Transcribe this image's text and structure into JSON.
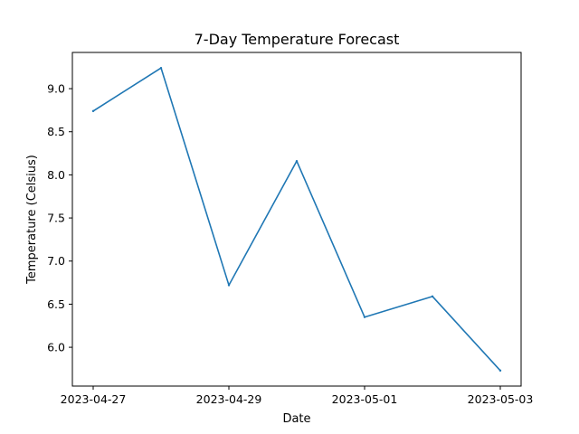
{
  "chart_data": {
    "type": "line",
    "title": "7-Day Temperature Forecast",
    "xlabel": "Date",
    "ylabel": "Temperature (Celsius)",
    "x": [
      "2023-04-27",
      "2023-04-28",
      "2023-04-29",
      "2023-04-30",
      "2023-05-01",
      "2023-05-02",
      "2023-05-03"
    ],
    "xticks": [
      "2023-04-27",
      "2023-04-29",
      "2023-05-01",
      "2023-05-03"
    ],
    "series": [
      {
        "values": [
          8.74,
          9.24,
          6.72,
          8.16,
          6.35,
          6.59,
          5.73
        ],
        "color": "#1f77b4"
      }
    ],
    "yticks": [
      "6.0",
      "6.5",
      "7.0",
      "7.5",
      "8.0",
      "8.5",
      "9.0"
    ],
    "ylim": [
      5.55,
      9.42
    ],
    "grid": false,
    "legend": "none"
  }
}
